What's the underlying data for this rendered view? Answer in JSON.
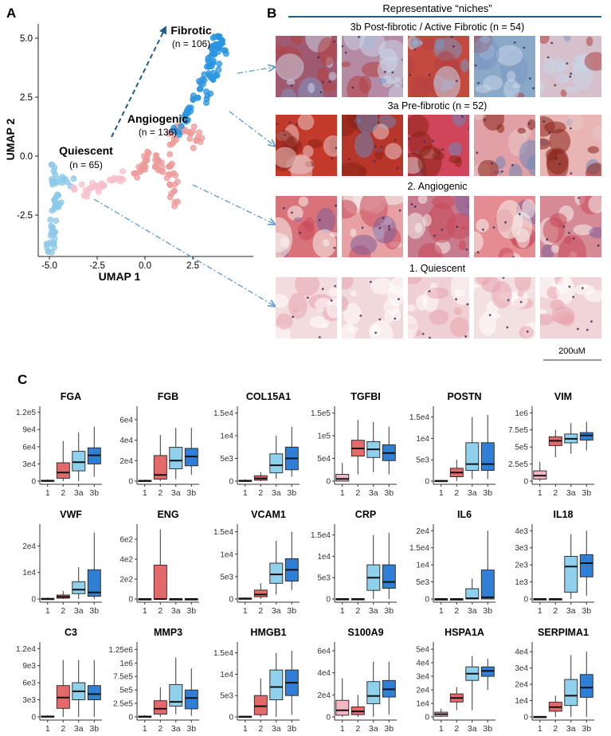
{
  "panel_labels": {
    "a": "A",
    "b": "B",
    "c": "C"
  },
  "colors": {
    "q": "#f4b6c2",
    "ang": "#e36a6a",
    "f3a": "#8fd0ec",
    "f3b": "#2f7fd6",
    "umap_q": "#8cc8ea",
    "umap_q2": "#f7bfcb",
    "umap_ang": "#ee9a9a",
    "umap_fib": "#2a94e0",
    "header_line": "#1f5f7a",
    "arrow": "#1d5d8c",
    "dashdot": "#5a9ad6"
  },
  "umap": {
    "xlabel": "UMAP 1",
    "ylabel": "UMAP 2",
    "x_ticks": [
      "-5.0",
      "-2.5",
      "0.0",
      "2.5"
    ],
    "y_ticks": [
      "5.0",
      "2.5",
      "0.0",
      "-2.5"
    ],
    "clusters": [
      {
        "name": "Fibrotic",
        "n": "(n = 106)"
      },
      {
        "name": "Angiogenic",
        "n": "(n = 136)"
      },
      {
        "name": "Quiescent",
        "n": "(n = 65)"
      }
    ]
  },
  "niches": {
    "header": "Representative “niches”",
    "rows": [
      {
        "label": "3b Post-fibrotic / Active Fibrotic (n = 54)",
        "palette": [
          "#9f5a72",
          "#b58aa4",
          "#c44a3f",
          "#8aa9c8",
          "#d6c0cc"
        ]
      },
      {
        "label": "3a Pre-fibrotic (n = 52)",
        "palette": [
          "#c43a2a",
          "#b8352a",
          "#d1455a",
          "#e0a0a6",
          "#e8b4b4"
        ]
      },
      {
        "label": "2. Angiogenic",
        "palette": [
          "#d9737a",
          "#e7a1a3",
          "#c87b8c",
          "#e48c92",
          "#d68a96"
        ]
      },
      {
        "label": "1. Quiescent",
        "palette": [
          "#f3dcdd",
          "#f1d8da",
          "#efd0d4",
          "#f3e0e1",
          "#f0d4d7"
        ]
      }
    ],
    "scale_bar": "200uM"
  },
  "chart_data": [
    {
      "type": "box",
      "title": "FGA",
      "categories": [
        "1",
        "2",
        "3a",
        "3b"
      ],
      "y_ticks": [
        "0",
        "3e4",
        "6e4",
        "9e4",
        "1.2e5"
      ],
      "ylim": [
        0,
        125000
      ],
      "boxes": [
        {
          "min": 0,
          "q1": 0,
          "med": 500,
          "q3": 1500,
          "max": 3000
        },
        {
          "min": 0,
          "q1": 5000,
          "med": 15000,
          "q3": 32000,
          "max": 70000
        },
        {
          "min": 0,
          "q1": 18000,
          "med": 33000,
          "q3": 52000,
          "max": 85000
        },
        {
          "min": 8000,
          "q1": 30000,
          "med": 45000,
          "q3": 58000,
          "max": 95000
        }
      ]
    },
    {
      "type": "box",
      "title": "FGB",
      "categories": [
        "1",
        "2",
        "3a",
        "3b"
      ],
      "y_ticks": [
        "0",
        "2e4",
        "4e4",
        "6e4"
      ],
      "ylim": [
        0,
        70000
      ],
      "boxes": [
        {
          "min": 0,
          "q1": 0,
          "med": 200,
          "q3": 800,
          "max": 1500
        },
        {
          "min": 0,
          "q1": 2000,
          "med": 6000,
          "q3": 25000,
          "max": 45000
        },
        {
          "min": 2000,
          "q1": 12000,
          "med": 20000,
          "q3": 33000,
          "max": 52000
        },
        {
          "min": 6000,
          "q1": 15000,
          "med": 24000,
          "q3": 32000,
          "max": 52000
        }
      ]
    },
    {
      "type": "box",
      "title": "COL15A1",
      "categories": [
        "1",
        "2",
        "3a",
        "3b"
      ],
      "y_ticks": [
        "0",
        "5e3",
        "1e4",
        "1.5e4"
      ],
      "ylim": [
        0,
        15800
      ],
      "boxes": [
        {
          "min": 0,
          "q1": 0,
          "med": 50,
          "q3": 200,
          "max": 400
        },
        {
          "min": 0,
          "q1": 200,
          "med": 600,
          "q3": 1200,
          "max": 2000
        },
        {
          "min": 500,
          "q1": 1800,
          "med": 3500,
          "q3": 6000,
          "max": 10000
        },
        {
          "min": 1000,
          "q1": 2500,
          "med": 5000,
          "q3": 7500,
          "max": 12000
        }
      ]
    },
    {
      "type": "box",
      "title": "TGFBI",
      "categories": [
        "1",
        "2",
        "3a",
        "3b"
      ],
      "y_ticks": [
        "0",
        "5e4",
        "1e5",
        "1.5e5"
      ],
      "ylim": [
        0,
        158000
      ],
      "boxes": [
        {
          "min": 0,
          "q1": 0,
          "med": 5000,
          "q3": 15000,
          "max": 40000
        },
        {
          "min": 15000,
          "q1": 55000,
          "med": 72000,
          "q3": 90000,
          "max": 135000
        },
        {
          "min": 20000,
          "q1": 52000,
          "med": 70000,
          "q3": 87000,
          "max": 130000
        },
        {
          "min": 15000,
          "q1": 45000,
          "med": 62000,
          "q3": 80000,
          "max": 120000
        }
      ]
    },
    {
      "type": "box",
      "title": "POSTN",
      "categories": [
        "1",
        "2",
        "3a",
        "3b"
      ],
      "y_ticks": [
        "0",
        "5e3",
        "1e4",
        "1.5e4"
      ],
      "ylim": [
        0,
        16800
      ],
      "boxes": [
        {
          "min": 0,
          "q1": 0,
          "med": 50,
          "q3": 150,
          "max": 300
        },
        {
          "min": 0,
          "q1": 1000,
          "med": 2000,
          "q3": 3000,
          "max": 5000
        },
        {
          "min": 500,
          "q1": 2500,
          "med": 4000,
          "q3": 9000,
          "max": 15000
        },
        {
          "min": 500,
          "q1": 2500,
          "med": 4000,
          "q3": 9000,
          "max": 15500
        }
      ]
    },
    {
      "type": "box",
      "title": "VIM",
      "categories": [
        "1",
        "2",
        "3a",
        "3b"
      ],
      "y_ticks": [
        "0",
        "2.5e5",
        "5e5",
        "7.5e5",
        "1e6"
      ],
      "ylim": [
        0,
        1050000
      ],
      "boxes": [
        {
          "min": 0,
          "q1": 30000,
          "med": 80000,
          "q3": 150000,
          "max": 280000
        },
        {
          "min": 350000,
          "q1": 520000,
          "med": 590000,
          "q3": 650000,
          "max": 750000
        },
        {
          "min": 400000,
          "q1": 560000,
          "med": 620000,
          "q3": 690000,
          "max": 850000
        },
        {
          "min": 450000,
          "q1": 600000,
          "med": 670000,
          "q3": 710000,
          "max": 870000
        }
      ]
    },
    {
      "type": "box",
      "title": "VWF",
      "categories": [
        "1",
        "2",
        "3a",
        "3b"
      ],
      "y_ticks": [
        "0",
        "1e4",
        "2e4"
      ],
      "ylim": [
        0,
        27000
      ],
      "boxes": [
        {
          "min": 0,
          "q1": 0,
          "med": 50,
          "q3": 200,
          "max": 500
        },
        {
          "min": 0,
          "q1": 300,
          "med": 800,
          "q3": 1500,
          "max": 3000
        },
        {
          "min": 0,
          "q1": 2000,
          "med": 3500,
          "q3": 6500,
          "max": 12000
        },
        {
          "min": 0,
          "q1": 1000,
          "med": 2500,
          "q3": 11000,
          "max": 25000
        }
      ]
    },
    {
      "type": "box",
      "title": "ENG",
      "categories": [
        "1",
        "2",
        "3a",
        "3b"
      ],
      "y_ticks": [
        "0",
        "2e2",
        "4e2",
        "6e2"
      ],
      "ylim": [
        0,
        720
      ],
      "boxes": [
        {
          "min": 0,
          "q1": 0,
          "med": 0,
          "q3": 2,
          "max": 5
        },
        {
          "min": 0,
          "q1": 0,
          "med": 0,
          "q3": 340,
          "max": 700
        },
        {
          "min": 0,
          "q1": 0,
          "med": 0,
          "q3": 2,
          "max": 5
        },
        {
          "min": 0,
          "q1": 0,
          "med": 0,
          "q3": 2,
          "max": 5
        }
      ]
    },
    {
      "type": "box",
      "title": "VCAM1",
      "categories": [
        "1",
        "2",
        "3a",
        "3b"
      ],
      "y_ticks": [
        "0",
        "5e3",
        "1e4",
        "1.5e4"
      ],
      "ylim": [
        0,
        16000
      ],
      "boxes": [
        {
          "min": 0,
          "q1": 0,
          "med": 100,
          "q3": 200,
          "max": 400
        },
        {
          "min": 0,
          "q1": 500,
          "med": 1000,
          "q3": 2000,
          "max": 3500
        },
        {
          "min": 1000,
          "q1": 3500,
          "med": 5500,
          "q3": 8000,
          "max": 13000
        },
        {
          "min": 2000,
          "q1": 4000,
          "med": 6500,
          "q3": 9000,
          "max": 15000
        }
      ]
    },
    {
      "type": "box",
      "title": "CRP",
      "categories": [
        "1",
        "2",
        "3a",
        "3b"
      ],
      "y_ticks": [
        "0",
        "5e3",
        "1e4",
        "1.5e4"
      ],
      "ylim": [
        0,
        16800
      ],
      "boxes": [
        {
          "min": 0,
          "q1": 0,
          "med": 0,
          "q3": 50,
          "max": 100
        },
        {
          "min": 0,
          "q1": 0,
          "med": 0,
          "q3": 50,
          "max": 100
        },
        {
          "min": 0,
          "q1": 2000,
          "med": 5000,
          "q3": 8000,
          "max": 15000
        },
        {
          "min": 0,
          "q1": 2500,
          "med": 4000,
          "q3": 8000,
          "max": 15500
        }
      ]
    },
    {
      "type": "box",
      "title": "IL6",
      "categories": [
        "1",
        "2",
        "3a",
        "3b"
      ],
      "y_ticks": [
        "0",
        "5e3",
        "1e4",
        "1.5e4",
        "2e4"
      ],
      "ylim": [
        0,
        21000
      ],
      "boxes": [
        {
          "min": 0,
          "q1": 0,
          "med": 0,
          "q3": 20,
          "max": 50
        },
        {
          "min": 0,
          "q1": 0,
          "med": 0,
          "q3": 20,
          "max": 50
        },
        {
          "min": 0,
          "q1": 0,
          "med": 200,
          "q3": 3000,
          "max": 6000
        },
        {
          "min": 0,
          "q1": 0,
          "med": 500,
          "q3": 8500,
          "max": 20000
        }
      ]
    },
    {
      "type": "box",
      "title": "IL18",
      "categories": [
        "1",
        "2",
        "3a",
        "3b"
      ],
      "y_ticks": [
        "0",
        "1e3",
        "2e3",
        "3e3",
        "4e3"
      ],
      "ylim": [
        0,
        4200
      ],
      "boxes": [
        {
          "min": 0,
          "q1": 0,
          "med": 0,
          "q3": 10,
          "max": 20
        },
        {
          "min": 0,
          "q1": 0,
          "med": 0,
          "q3": 10,
          "max": 20
        },
        {
          "min": 0,
          "q1": 400,
          "med": 1900,
          "q3": 2500,
          "max": 3800
        },
        {
          "min": 200,
          "q1": 1300,
          "med": 2100,
          "q3": 2600,
          "max": 4000
        }
      ]
    },
    {
      "type": "box",
      "title": "C3",
      "categories": [
        "1",
        "2",
        "3a",
        "3b"
      ],
      "y_ticks": [
        "0",
        "3e3",
        "6e3",
        "9e3",
        "1.2e4"
      ],
      "ylim": [
        0,
        12600
      ],
      "boxes": [
        {
          "min": 0,
          "q1": 0,
          "med": 50,
          "q3": 150,
          "max": 300
        },
        {
          "min": 0,
          "q1": 1500,
          "med": 3400,
          "q3": 5500,
          "max": 10000
        },
        {
          "min": 0,
          "q1": 3000,
          "med": 4500,
          "q3": 6000,
          "max": 10000
        },
        {
          "min": 0,
          "q1": 3000,
          "med": 4000,
          "q3": 5500,
          "max": 10000
        }
      ]
    },
    {
      "type": "box",
      "title": "MMP3",
      "categories": [
        "1",
        "2",
        "3a",
        "3b"
      ],
      "y_ticks": [
        "0",
        "2.5e5",
        "5e5",
        "7.5e5",
        "1e6",
        "1.25e6"
      ],
      "ylim": [
        0,
        1330000
      ],
      "boxes": [
        {
          "min": 0,
          "q1": 0,
          "med": 5000,
          "q3": 15000,
          "max": 30000
        },
        {
          "min": 0,
          "q1": 50000,
          "med": 150000,
          "q3": 300000,
          "max": 550000
        },
        {
          "min": 50000,
          "q1": 200000,
          "med": 280000,
          "q3": 600000,
          "max": 1100000
        },
        {
          "min": 20000,
          "q1": 150000,
          "med": 350000,
          "q3": 500000,
          "max": 900000
        }
      ]
    },
    {
      "type": "box",
      "title": "HMGB1",
      "categories": [
        "1",
        "2",
        "3a",
        "3b"
      ],
      "y_ticks": [
        "0",
        "5e3",
        "1e4",
        "1.5e4"
      ],
      "ylim": [
        0,
        16800
      ],
      "boxes": [
        {
          "min": 0,
          "q1": 0,
          "med": 50,
          "q3": 150,
          "max": 300
        },
        {
          "min": 0,
          "q1": 500,
          "med": 2500,
          "q3": 5000,
          "max": 9000
        },
        {
          "min": 0,
          "q1": 4000,
          "med": 7000,
          "q3": 11000,
          "max": 15000
        },
        {
          "min": 500,
          "q1": 5000,
          "med": 8000,
          "q3": 11000,
          "max": 15500
        }
      ]
    },
    {
      "type": "box",
      "title": "S100A9",
      "categories": [
        "1",
        "2",
        "3a",
        "3b"
      ],
      "y_ticks": [
        "0",
        "2e4",
        "4e4",
        "6e4"
      ],
      "ylim": [
        0,
        65000
      ],
      "boxes": [
        {
          "min": 0,
          "q1": 1500,
          "med": 6000,
          "q3": 15000,
          "max": 35000
        },
        {
          "min": 0,
          "q1": 2000,
          "med": 5000,
          "q3": 9000,
          "max": 20000
        },
        {
          "min": 0,
          "q1": 12000,
          "med": 19000,
          "q3": 32000,
          "max": 50000
        },
        {
          "min": 2000,
          "q1": 18000,
          "med": 25000,
          "q3": 33000,
          "max": 50000
        }
      ]
    },
    {
      "type": "box",
      "title": "HSPA1A",
      "categories": [
        "1",
        "2",
        "3a",
        "3b"
      ],
      "y_ticks": [
        "0",
        "1e4",
        "2e4",
        "3e4",
        "4e4",
        "5e4"
      ],
      "ylim": [
        0,
        53000
      ],
      "boxes": [
        {
          "min": 0,
          "q1": 500,
          "med": 2000,
          "q3": 3500,
          "max": 6000
        },
        {
          "min": 5000,
          "q1": 11000,
          "med": 14000,
          "q3": 17000,
          "max": 22000
        },
        {
          "min": 5000,
          "q1": 27000,
          "med": 32000,
          "q3": 37000,
          "max": 45000
        },
        {
          "min": 20000,
          "q1": 30000,
          "med": 34000,
          "q3": 37000,
          "max": 43000
        }
      ]
    },
    {
      "type": "box",
      "title": "SERPIMA1",
      "categories": [
        "1",
        "2",
        "3a",
        "3b"
      ],
      "y_ticks": [
        "0",
        "1e4",
        "2e4",
        "3e4",
        "4e4"
      ],
      "ylim": [
        0,
        44000
      ],
      "boxes": [
        {
          "min": 0,
          "q1": 0,
          "med": 50,
          "q3": 200,
          "max": 500
        },
        {
          "min": 0,
          "q1": 3500,
          "med": 6000,
          "q3": 9000,
          "max": 13000
        },
        {
          "min": 0,
          "q1": 7000,
          "med": 13000,
          "q3": 23000,
          "max": 38000
        },
        {
          "min": 0,
          "q1": 12000,
          "med": 18000,
          "q3": 26000,
          "max": 40000
        }
      ]
    }
  ]
}
